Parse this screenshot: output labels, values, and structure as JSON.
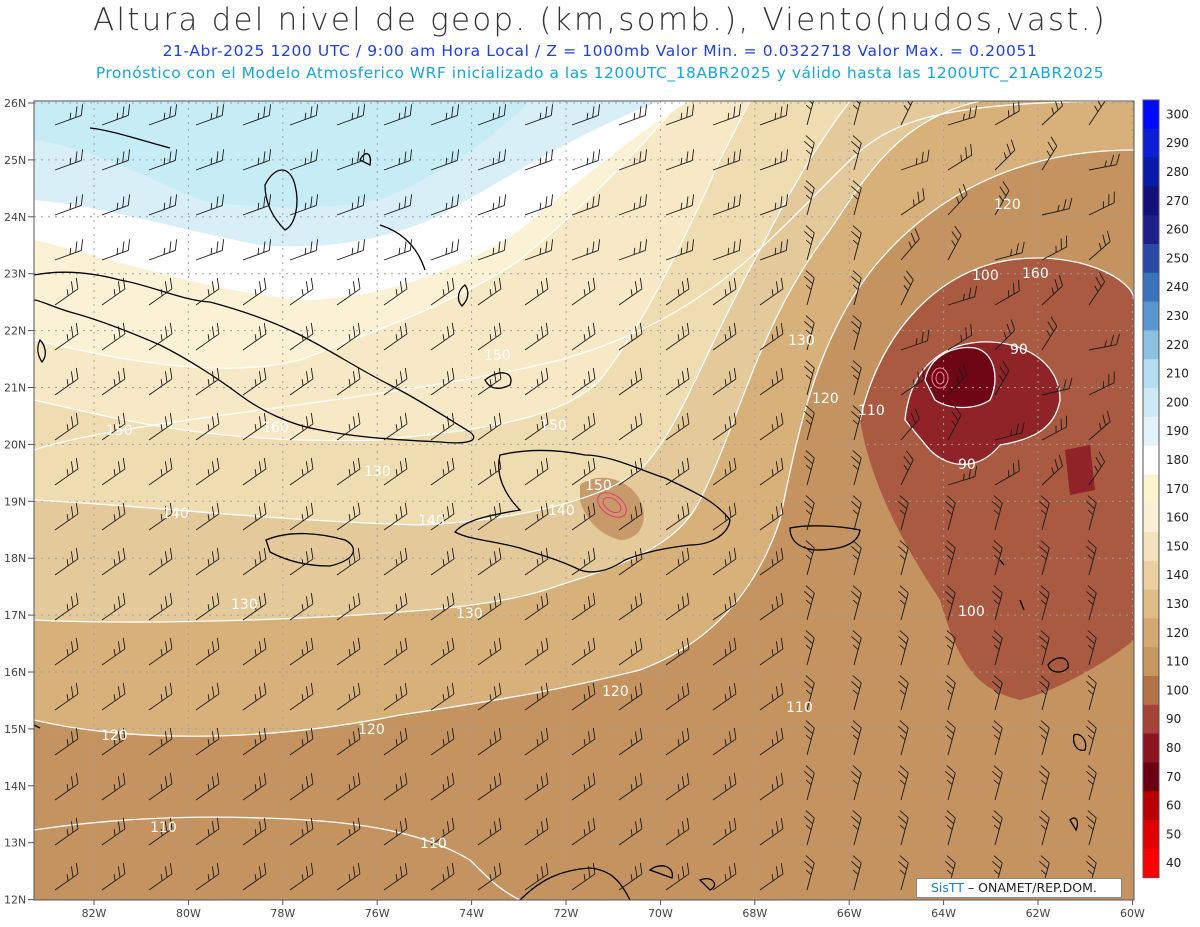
{
  "header": {
    "title": "Altura del nivel de geop. (km,somb.), Viento(nudos,vast.)",
    "subtitle_run": "21-Abr-2025  1200 UTC / 9:00 am Hora Local / Z = 1000mb  Valor Min. = 0.0322718  Valor Max. = 0.20051",
    "subtitle_model": "Pronóstico con el Modelo Atmosferico WRF inicializado a las 1200UTC_18ABR2025 y válido hasta las  1200UTC_21ABR2025"
  },
  "axes": {
    "lat_labels": [
      "26N",
      "25N",
      "24N",
      "23N",
      "22N",
      "21N",
      "20N",
      "19N",
      "18N",
      "17N",
      "16N",
      "15N",
      "14N",
      "13N",
      "12N"
    ],
    "lon_labels": [
      "82W",
      "80W",
      "78W",
      "76W",
      "74W",
      "72W",
      "70W",
      "68W",
      "66W",
      "64W",
      "62W",
      "60W"
    ],
    "grid": true
  },
  "contour_labels": [
    "150",
    "160",
    "150",
    "150",
    "140",
    "140",
    "130",
    "130",
    "130",
    "120",
    "120",
    "120",
    "120",
    "110",
    "110",
    "110",
    "110",
    "100",
    "100",
    "90",
    "90",
    "120",
    "130",
    "140",
    "150",
    "160"
  ],
  "colorbar": {
    "labels": [
      "300",
      "290",
      "280",
      "270",
      "260",
      "250",
      "240",
      "230",
      "220",
      "210",
      "200",
      "190",
      "180",
      "170",
      "160",
      "150",
      "140",
      "130",
      "120",
      "110",
      "100",
      "90",
      "80",
      "70",
      "60",
      "50",
      "40"
    ],
    "colors": [
      "#0008ff",
      "#0a1fd6",
      "#0a1aa8",
      "#14107a",
      "#1f1f8a",
      "#2b4aa6",
      "#3a72bc",
      "#5b97cc",
      "#8ec1e0",
      "#b4dff0",
      "#cde9f4",
      "#e3f3f9",
      "#ffffff",
      "#fdf3cf",
      "#fbf0d6",
      "#f3e3bd",
      "#eacfa0",
      "#e0bd86",
      "#d4a871",
      "#c79760",
      "#b47248",
      "#a5423a",
      "#8a1420",
      "#6b0014",
      "#b80000",
      "#e00000",
      "#ff0000"
    ]
  },
  "credit": {
    "brand": "SisTT",
    "text": " – ONAMET/REP.DOM."
  }
}
